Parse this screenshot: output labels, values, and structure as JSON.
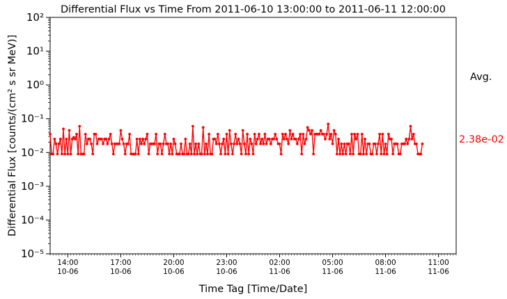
{
  "chart_data": {
    "type": "line",
    "title": "Differential Flux vs Time From 2011-06-10 13:00:00 to 2011-06-11 12:00:00",
    "xlabel": "Time Tag [Time/Date]",
    "ylabel": "Differential Flux [counts/(cm² s sr MeV)]",
    "yscale": "log",
    "ylim": [
      1e-05,
      100
    ],
    "yticks": [
      {
        "value": 1e-05,
        "label": "10⁻⁵"
      },
      {
        "value": 0.0001,
        "label": "10⁻⁴"
      },
      {
        "value": 0.001,
        "label": "10⁻³"
      },
      {
        "value": 0.01,
        "label": "10⁻²"
      },
      {
        "value": 0.1,
        "label": "10⁻¹"
      },
      {
        "value": 1,
        "label": "10⁰"
      },
      {
        "value": 10,
        "label": "10¹"
      },
      {
        "value": 100,
        "label": "10²"
      }
    ],
    "xlim": [
      "2011-06-10 13:00:00",
      "2011-06-11 12:00:00"
    ],
    "xticks": [
      {
        "value": "2011-06-10 14:00:00",
        "time": "14:00",
        "date": "10-06"
      },
      {
        "value": "2011-06-10 17:00:00",
        "time": "17:00",
        "date": "10-06"
      },
      {
        "value": "2011-06-10 20:00:00",
        "time": "20:00",
        "date": "10-06"
      },
      {
        "value": "2011-06-10 23:00:00",
        "time": "23:00",
        "date": "10-06"
      },
      {
        "value": "2011-06-11 02:00:00",
        "time": "02:00",
        "date": "11-06"
      },
      {
        "value": "2011-06-11 05:00:00",
        "time": "05:00",
        "date": "11-06"
      },
      {
        "value": "2011-06-11 08:00:00",
        "time": "08:00",
        "date": "11-06"
      },
      {
        "value": "2011-06-11 11:00:00",
        "time": "11:00",
        "date": "11-06"
      }
    ],
    "series": [
      {
        "color": "#ff0000",
        "marker": "dot",
        "x_start": "2011-06-10 13:00:00",
        "x_step_minutes": 5,
        "values": [
          0.035,
          0.009,
          0.009,
          0.025,
          0.018,
          0.009,
          0.018,
          0.025,
          0.009,
          0.05,
          0.009,
          0.025,
          0.009,
          0.045,
          0.009,
          0.025,
          0.028,
          0.025,
          0.035,
          0.009,
          0.06,
          0.009,
          0.009,
          0.009,
          0.035,
          0.018,
          0.025,
          0.025,
          0.018,
          0.009,
          0.035,
          0.035,
          0.018,
          0.025,
          0.025,
          0.025,
          0.018,
          0.025,
          0.025,
          0.018,
          0.025,
          0.035,
          0.018,
          0.009,
          0.018,
          0.018,
          0.018,
          0.018,
          0.045,
          0.025,
          0.018,
          0.009,
          0.018,
          0.018,
          0.035,
          0.009,
          0.009,
          0.009,
          0.009,
          0.025,
          0.009,
          0.025,
          0.018,
          0.025,
          0.018,
          0.025,
          0.035,
          0.009,
          0.018,
          0.018,
          0.018,
          0.018,
          0.035,
          0.009,
          0.018,
          0.018,
          0.009,
          0.018,
          0.035,
          0.018,
          0.018,
          0.009,
          0.018,
          0.009,
          0.025,
          0.018,
          0.009,
          0.009,
          0.009,
          0.018,
          0.009,
          0.009,
          0.025,
          0.009,
          0.009,
          0.018,
          0.009,
          0.06,
          0.009,
          0.018,
          0.009,
          0.018,
          0.009,
          0.009,
          0.055,
          0.009,
          0.018,
          0.009,
          0.035,
          0.009,
          0.009,
          0.025,
          0.025,
          0.018,
          0.035,
          0.018,
          0.009,
          0.018,
          0.025,
          0.009,
          0.035,
          0.009,
          0.045,
          0.018,
          0.009,
          0.018,
          0.035,
          0.018,
          0.025,
          0.018,
          0.009,
          0.045,
          0.018,
          0.009,
          0.035,
          0.009,
          0.025,
          0.018,
          0.009,
          0.035,
          0.018,
          0.025,
          0.035,
          0.018,
          0.025,
          0.018,
          0.035,
          0.018,
          0.025,
          0.025,
          0.018,
          0.025,
          0.025,
          0.035,
          0.025,
          0.018,
          0.018,
          0.009,
          0.035,
          0.025,
          0.035,
          0.025,
          0.018,
          0.045,
          0.025,
          0.035,
          0.025,
          0.025,
          0.018,
          0.025,
          0.035,
          0.009,
          0.035,
          0.018,
          0.025,
          0.055,
          0.045,
          0.035,
          0.045,
          0.009,
          0.035,
          0.035,
          0.035,
          0.035,
          0.045,
          0.035,
          0.035,
          0.025,
          0.035,
          0.07,
          0.025,
          0.035,
          0.018,
          0.045,
          0.035,
          0.009,
          0.025,
          0.009,
          0.018,
          0.009,
          0.018,
          0.009,
          0.018,
          0.018,
          0.009,
          0.035,
          0.009,
          0.035,
          0.025,
          0.035,
          0.009,
          0.009,
          0.035,
          0.009,
          0.025,
          0.009,
          0.018,
          0.018,
          0.009,
          0.009,
          0.018,
          0.018,
          0.009,
          0.018,
          0.035,
          0.009,
          0.035,
          0.009,
          0.018,
          0.009,
          0.035,
          0.025,
          0.025,
          0.009,
          0.018,
          0.018,
          0.018,
          0.009,
          0.009,
          0.018,
          0.018,
          0.018,
          0.025,
          0.018,
          0.025,
          0.06,
          0.025,
          0.035,
          0.018,
          0.018,
          0.009,
          0.009,
          0.009,
          0.018
        ]
      }
    ],
    "average": {
      "value": 0.0238,
      "label": "2.38e-02",
      "header": "Avg.",
      "color": "#ff0000"
    },
    "grid": false,
    "legend": "none"
  }
}
